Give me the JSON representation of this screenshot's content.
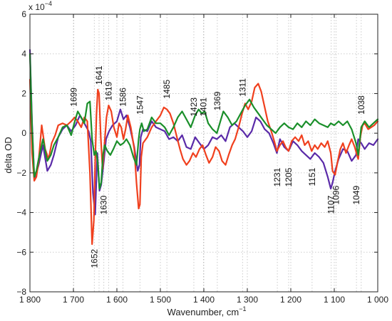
{
  "chart_data": {
    "type": "line",
    "title": "",
    "xlabel": "Wavenumber, cm",
    "xlabel_superscript": "−1",
    "ylabel": "delta OD",
    "y_multiplier": "x 10",
    "y_multiplier_exp": "−4",
    "xlim": [
      1800,
      1000
    ],
    "x_reversed": true,
    "ylim": [
      -8,
      6
    ],
    "grid": true,
    "legend": "none",
    "x_ticks": [
      1800,
      1700,
      1600,
      1500,
      1400,
      1300,
      1200,
      1100,
      1000
    ],
    "x_tick_labels": [
      "1 800",
      "1 700",
      "1 600",
      "1 500",
      "1 400",
      "1 300",
      "1 200",
      "1 100",
      "1 000"
    ],
    "y_ticks": [
      6,
      4,
      2,
      0,
      -2,
      -4,
      -6,
      -8
    ],
    "y_tick_labels": [
      "6",
      "4",
      "2",
      "0",
      "−2",
      "−4",
      "−6",
      "−8"
    ],
    "annotations": [
      {
        "text": "1699",
        "x": 1699,
        "y": 1.2,
        "side": "above"
      },
      {
        "text": "1641",
        "x": 1641,
        "y": 2.3,
        "side": "above"
      },
      {
        "text": "1619",
        "x": 1619,
        "y": 1.5,
        "side": "above"
      },
      {
        "text": "1586",
        "x": 1586,
        "y": 1.2,
        "side": "above"
      },
      {
        "text": "1547",
        "x": 1547,
        "y": 0.8,
        "side": "above"
      },
      {
        "text": "1485",
        "x": 1485,
        "y": 1.6,
        "side": "above"
      },
      {
        "text": "1423",
        "x": 1423,
        "y": 0.7,
        "side": "above"
      },
      {
        "text": "1401",
        "x": 1401,
        "y": 0.7,
        "side": "above"
      },
      {
        "text": "1369",
        "x": 1369,
        "y": 1.0,
        "side": "above"
      },
      {
        "text": "1311",
        "x": 1311,
        "y": 1.7,
        "side": "above"
      },
      {
        "text": "1038",
        "x": 1038,
        "y": 0.8,
        "side": "above"
      },
      {
        "text": "1231",
        "x": 1231,
        "y": -1.6,
        "side": "below"
      },
      {
        "text": "1205",
        "x": 1205,
        "y": -1.6,
        "side": "below"
      },
      {
        "text": "1151",
        "x": 1151,
        "y": -1.6,
        "side": "below"
      },
      {
        "text": "1107",
        "x": 1107,
        "y": -3.0,
        "side": "below"
      },
      {
        "text": "1096",
        "x": 1096,
        "y": -2.5,
        "side": "below"
      },
      {
        "text": "1049",
        "x": 1049,
        "y": -2.5,
        "side": "below"
      },
      {
        "text": "1630",
        "x": 1630,
        "y": -3.0,
        "side": "below"
      },
      {
        "text": "1652",
        "x": 1652,
        "y": -5.7,
        "side": "below"
      }
    ],
    "series": [
      {
        "color": "#5a2aa8",
        "x": [
          1800,
          1795,
          1790,
          1785,
          1780,
          1770,
          1760,
          1752,
          1745,
          1735,
          1725,
          1715,
          1705,
          1695,
          1685,
          1675,
          1665,
          1660,
          1655,
          1650,
          1645,
          1640,
          1636,
          1630,
          1625,
          1618,
          1610,
          1600,
          1592,
          1585,
          1578,
          1570,
          1560,
          1552,
          1548,
          1545,
          1540,
          1530,
          1520,
          1510,
          1500,
          1490,
          1480,
          1470,
          1460,
          1450,
          1440,
          1430,
          1420,
          1410,
          1400,
          1390,
          1380,
          1370,
          1360,
          1350,
          1340,
          1330,
          1320,
          1310,
          1300,
          1290,
          1280,
          1270,
          1260,
          1250,
          1240,
          1232,
          1225,
          1215,
          1205,
          1195,
          1185,
          1175,
          1165,
          1155,
          1145,
          1135,
          1125,
          1115,
          1108,
          1104,
          1098,
          1090,
          1080,
          1070,
          1060,
          1050,
          1045,
          1038,
          1030,
          1020,
          1010,
          1000
        ],
        "y": [
          4.2,
          0.5,
          -2.3,
          -2.0,
          -1.6,
          -0.6,
          -1.9,
          -1.6,
          -1.1,
          -0.2,
          0.2,
          0.4,
          0.1,
          0.4,
          0.9,
          0.5,
          0.1,
          -0.4,
          -3.0,
          -4.1,
          -1.0,
          -2.9,
          -2.6,
          -1.4,
          -0.3,
          0.1,
          0.4,
          0.6,
          1.2,
          0.7,
          0.9,
          0.3,
          -0.7,
          -1.9,
          -1.6,
          -0.2,
          0.2,
          0.1,
          0.6,
          0.3,
          0.2,
          0.1,
          -0.3,
          -0.2,
          -0.4,
          -0.1,
          -0.7,
          -0.8,
          -0.2,
          -0.5,
          -0.8,
          -0.6,
          -0.2,
          -0.3,
          -0.1,
          -0.4,
          0.3,
          0.5,
          0.3,
          0.1,
          -0.2,
          0.1,
          0.8,
          0.6,
          0.2,
          0.0,
          -0.5,
          -1.0,
          -0.3,
          -0.7,
          -0.9,
          -0.4,
          -0.6,
          -0.9,
          -1.1,
          -1.3,
          -1.0,
          -1.2,
          -1.5,
          -2.2,
          -2.8,
          -2.5,
          -1.9,
          -1.3,
          -0.8,
          -0.9,
          -1.4,
          -1.1,
          -0.3,
          -0.5,
          -0.8,
          -0.5,
          -0.6,
          -0.3
        ]
      },
      {
        "color": "#f0401e",
        "x": [
          1800,
          1795,
          1790,
          1785,
          1780,
          1773,
          1765,
          1757,
          1750,
          1742,
          1735,
          1725,
          1715,
          1705,
          1697,
          1690,
          1682,
          1675,
          1668,
          1662,
          1657,
          1653,
          1650,
          1647,
          1644,
          1641,
          1637,
          1633,
          1628,
          1624,
          1619,
          1613,
          1607,
          1600,
          1595,
          1590,
          1585,
          1580,
          1575,
          1568,
          1560,
          1555,
          1550,
          1547,
          1544,
          1540,
          1530,
          1520,
          1510,
          1500,
          1492,
          1485,
          1478,
          1470,
          1462,
          1455,
          1448,
          1440,
          1433,
          1425,
          1418,
          1410,
          1403,
          1395,
          1388,
          1380,
          1373,
          1365,
          1358,
          1350,
          1343,
          1335,
          1328,
          1320,
          1312,
          1305,
          1298,
          1290,
          1283,
          1275,
          1268,
          1260,
          1253,
          1245,
          1238,
          1232,
          1225,
          1218,
          1212,
          1205,
          1198,
          1190,
          1182,
          1175,
          1168,
          1160,
          1152,
          1145,
          1138,
          1130,
          1122,
          1115,
          1108,
          1104,
          1098,
          1092,
          1086,
          1080,
          1073,
          1066,
          1060,
          1053,
          1049,
          1045,
          1040,
          1035,
          1030,
          1022,
          1015,
          1008,
          1000
        ],
        "y": [
          2.7,
          -1.0,
          -2.4,
          -2.2,
          -1.4,
          0.4,
          -0.8,
          -1.3,
          -0.5,
          -0.1,
          0.4,
          0.5,
          0.4,
          0.6,
          0.8,
          0.6,
          0.3,
          0.8,
          0.6,
          -2.0,
          -5.6,
          -4.4,
          -1.5,
          0.9,
          2.2,
          2.0,
          -0.2,
          -1.8,
          -0.4,
          0.8,
          1.4,
          1.1,
          0.3,
          -0.2,
          0.5,
          0.3,
          -0.3,
          0.2,
          0.9,
          0.3,
          -0.8,
          -2.5,
          -3.8,
          -3.6,
          -1.2,
          -0.5,
          -0.2,
          0.3,
          0.6,
          0.9,
          1.3,
          1.2,
          1.0,
          0.5,
          -0.2,
          -0.8,
          -1.3,
          -1.6,
          -1.4,
          -1.0,
          -1.2,
          -0.8,
          -0.6,
          -1.1,
          -1.5,
          -1.2,
          -0.7,
          -0.9,
          -1.4,
          -1.6,
          -1.1,
          -0.6,
          -0.3,
          0.3,
          1.0,
          1.5,
          1.2,
          1.6,
          2.3,
          2.5,
          2.1,
          1.3,
          0.6,
          0.1,
          -0.4,
          -0.9,
          -0.6,
          -0.4,
          -0.7,
          -0.9,
          -0.4,
          -0.2,
          -0.4,
          -0.1,
          -0.6,
          -0.4,
          -0.9,
          -0.6,
          -0.8,
          -0.5,
          -0.7,
          -0.4,
          -1.0,
          -1.9,
          -2.1,
          -1.4,
          -0.8,
          -0.5,
          -1.0,
          -0.6,
          -0.3,
          -0.7,
          -1.0,
          -1.3,
          -0.2,
          0.4,
          0.5,
          0.2,
          0.3,
          0.4,
          0.6
        ]
      },
      {
        "color": "#1a8f2a",
        "x": [
          1800,
          1795,
          1790,
          1785,
          1780,
          1770,
          1760,
          1752,
          1745,
          1735,
          1725,
          1715,
          1705,
          1698,
          1690,
          1682,
          1675,
          1668,
          1662,
          1657,
          1652,
          1648,
          1644,
          1640,
          1636,
          1632,
          1628,
          1622,
          1615,
          1608,
          1600,
          1592,
          1585,
          1578,
          1570,
          1562,
          1555,
          1550,
          1547,
          1543,
          1538,
          1530,
          1520,
          1510,
          1500,
          1490,
          1480,
          1470,
          1460,
          1450,
          1440,
          1430,
          1420,
          1412,
          1405,
          1398,
          1390,
          1380,
          1370,
          1362,
          1355,
          1345,
          1335,
          1325,
          1315,
          1305,
          1295,
          1285,
          1275,
          1265,
          1255,
          1245,
          1235,
          1225,
          1215,
          1205,
          1195,
          1185,
          1175,
          1165,
          1155,
          1145,
          1135,
          1125,
          1115,
          1108,
          1100,
          1090,
          1080,
          1070,
          1060,
          1050,
          1045,
          1038,
          1030,
          1020,
          1010,
          1000
        ],
        "y": [
          4.0,
          0.3,
          -2.2,
          -1.9,
          -1.3,
          -0.3,
          -1.4,
          -1.1,
          -0.6,
          -0.2,
          0.3,
          0.4,
          -0.1,
          0.5,
          1.1,
          0.8,
          0.5,
          1.5,
          1.6,
          -0.3,
          -1.1,
          -0.9,
          -1.5,
          -2.8,
          -2.5,
          -1.1,
          -0.6,
          -0.9,
          -1.1,
          -0.8,
          -0.4,
          -0.6,
          -0.5,
          -0.3,
          -0.6,
          -1.2,
          -1.6,
          -0.3,
          0.2,
          0.5,
          0.1,
          0.2,
          0.8,
          0.5,
          0.5,
          0.3,
          -0.1,
          0.3,
          0.8,
          1.1,
          0.7,
          0.3,
          0.9,
          1.2,
          1.0,
          1.1,
          0.5,
          0.2,
          0.0,
          0.6,
          1.1,
          0.8,
          0.4,
          0.6,
          1.0,
          1.4,
          1.7,
          1.3,
          1.0,
          0.7,
          0.4,
          0.2,
          0.0,
          0.3,
          0.5,
          0.3,
          0.2,
          0.5,
          0.3,
          0.6,
          0.4,
          0.7,
          0.5,
          0.4,
          0.3,
          0.5,
          0.4,
          0.6,
          0.4,
          0.6,
          0.2,
          -0.5,
          -1.1,
          0.3,
          0.6,
          0.3,
          0.5,
          0.7
        ]
      }
    ]
  }
}
